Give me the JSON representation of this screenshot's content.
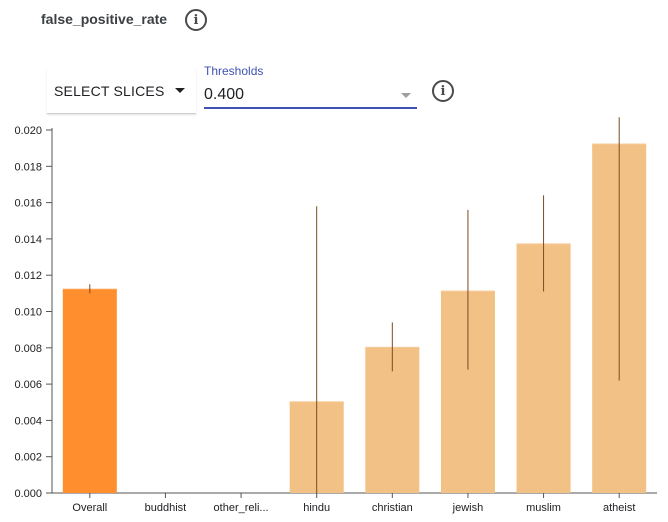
{
  "header": {
    "title": "false_positive_rate",
    "info_icon": "info-icon"
  },
  "controls": {
    "select_slices_label": "SELECT SLICES",
    "threshold_label": "Thresholds",
    "threshold_value": "0.400"
  },
  "colors": {
    "overall_bar": "#ff8f2e",
    "slice_bar": "#f2c185",
    "error_bar": "#7a4a1e",
    "accent": "#3f51b5"
  },
  "chart_data": {
    "type": "bar",
    "categories": [
      "Overall",
      "buddhist",
      "other_reli...",
      "hindu",
      "christian",
      "jewish",
      "muslim",
      "atheist"
    ],
    "values": [
      0.0112,
      0,
      0,
      0.005,
      0.008,
      0.0111,
      0.0137,
      0.0192
    ],
    "error_low": [
      0.011,
      0,
      0,
      0.0,
      0.0067,
      0.0068,
      0.0111,
      0.0062
    ],
    "error_high": [
      0.0115,
      0,
      0,
      0.0158,
      0.0094,
      0.0156,
      0.0164,
      0.0207
    ],
    "highlight": [
      "Overall"
    ],
    "ylim": [
      0,
      0.02
    ],
    "yticks": [
      "0.000",
      "0.002",
      "0.004",
      "0.006",
      "0.008",
      "0.010",
      "0.012",
      "0.014",
      "0.016",
      "0.018",
      "0.020"
    ],
    "grid": false
  }
}
